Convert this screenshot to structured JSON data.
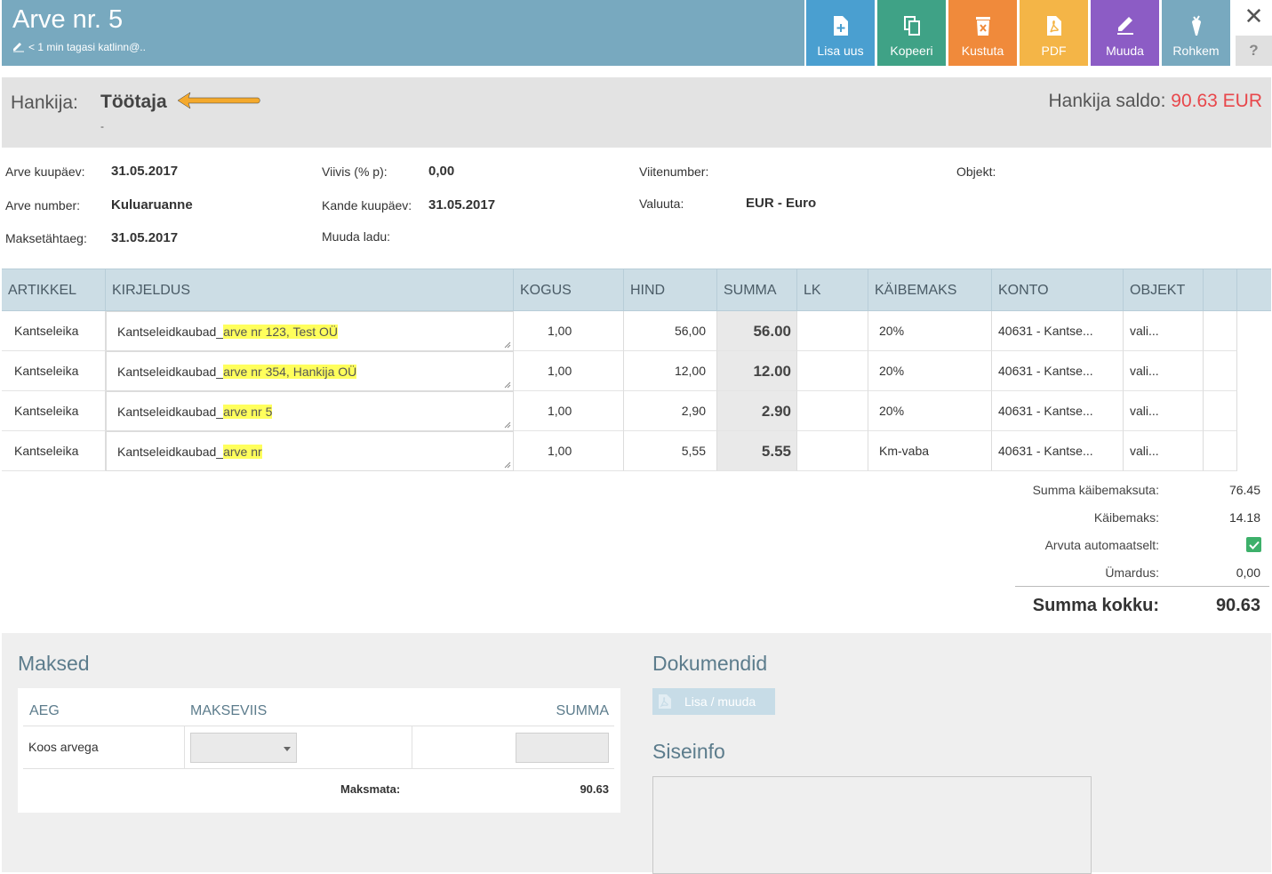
{
  "header": {
    "title": "Arve nr. 5",
    "subtitle": "< 1 min tagasi katlinn@.."
  },
  "toolbar": [
    {
      "label": "Lisa uus",
      "icon": "add-document-icon",
      "color": "#4a9fd0"
    },
    {
      "label": "Kopeeri",
      "icon": "copy-icon",
      "color": "#3fa286"
    },
    {
      "label": "Kustuta",
      "icon": "delete-icon",
      "color": "#f08a3b"
    },
    {
      "label": "PDF",
      "icon": "pdf-icon",
      "color": "#f4b547"
    },
    {
      "label": "Muuda",
      "icon": "edit-icon",
      "color": "#8c5cc5"
    },
    {
      "label": "Rohkem",
      "icon": "carrot-icon",
      "color": "#78a9bf"
    }
  ],
  "window": {
    "close": "✕",
    "help": "?"
  },
  "supplier": {
    "label": "Hankija:",
    "name": "Töötaja",
    "sub": "-",
    "saldo_label": "Hankija saldo:",
    "saldo_value": "90.63 EUR"
  },
  "fields": {
    "invoice_date_label": "Arve kuupäev:",
    "invoice_date": "31.05.2017",
    "invoice_number_label": "Arve number:",
    "invoice_number": "Kuluaruanne",
    "due_date_label": "Maksetähtaeg:",
    "due_date": "31.05.2017",
    "penalty_label": "Viivis (% p):",
    "penalty": "0,00",
    "entry_date_label": "Kande kuupäev:",
    "entry_date": "31.05.2017",
    "warehouse_label": "Muuda ladu:",
    "reference_label": "Viitenumber:",
    "currency_label": "Valuuta:",
    "currency": "EUR - Euro",
    "object_label": "Objekt:"
  },
  "table": {
    "headers": [
      "ARTIKKEL",
      "KIRJELDUS",
      "KOGUS",
      "HIND",
      "SUMMA",
      "LK",
      "KÄIBEMAKS",
      "KONTO",
      "OBJEKT"
    ],
    "rows": [
      {
        "article": "Kantseleika",
        "desc_prefix": "Kantseleidkaubad_",
        "desc_highlight": "arve nr 123, Test OÜ",
        "qty": "1,00",
        "price": "56,00",
        "sum": "56.00",
        "vat": "20%",
        "account": "40631 - Kantse...",
        "object": "vali..."
      },
      {
        "article": "Kantseleika",
        "desc_prefix": "Kantseleidkaubad_",
        "desc_highlight": "arve nr 354, Hankija OÜ",
        "qty": "1,00",
        "price": "12,00",
        "sum": "12.00",
        "vat": "20%",
        "account": "40631 - Kantse...",
        "object": "vali..."
      },
      {
        "article": "Kantseleika",
        "desc_prefix": "Kantseleidkaubad_",
        "desc_highlight": "arve nr 5",
        "qty": "1,00",
        "price": "2,90",
        "sum": "2.90",
        "vat": "20%",
        "account": "40631 - Kantse...",
        "object": "vali..."
      },
      {
        "article": "Kantseleika",
        "desc_prefix": "Kantseleidkaubad_",
        "desc_highlight": "arve nr",
        "qty": "1,00",
        "price": "5,55",
        "sum": "5.55",
        "vat": "Km-vaba",
        "account": "40631 - Kantse...",
        "object": "vali..."
      }
    ]
  },
  "totals": {
    "net_label": "Summa käibemaksuta:",
    "net": "76.45",
    "vat_label": "Käibemaks:",
    "vat": "14.18",
    "auto_label": "Arvuta automaatselt:",
    "rounding_label": "Ümardus:",
    "rounding": "0,00",
    "total_label": "Summa kokku:",
    "total": "90.63"
  },
  "payments": {
    "title": "Maksed",
    "headers": [
      "AEG",
      "MAKSEVIIS",
      "SUMMA"
    ],
    "row_label": "Koos arvega",
    "unpaid_label": "Maksmata:",
    "unpaid": "90.63"
  },
  "documents": {
    "title": "Dokumendid",
    "button": "Lisa / muuda"
  },
  "internal": {
    "title": "Siseinfo"
  }
}
